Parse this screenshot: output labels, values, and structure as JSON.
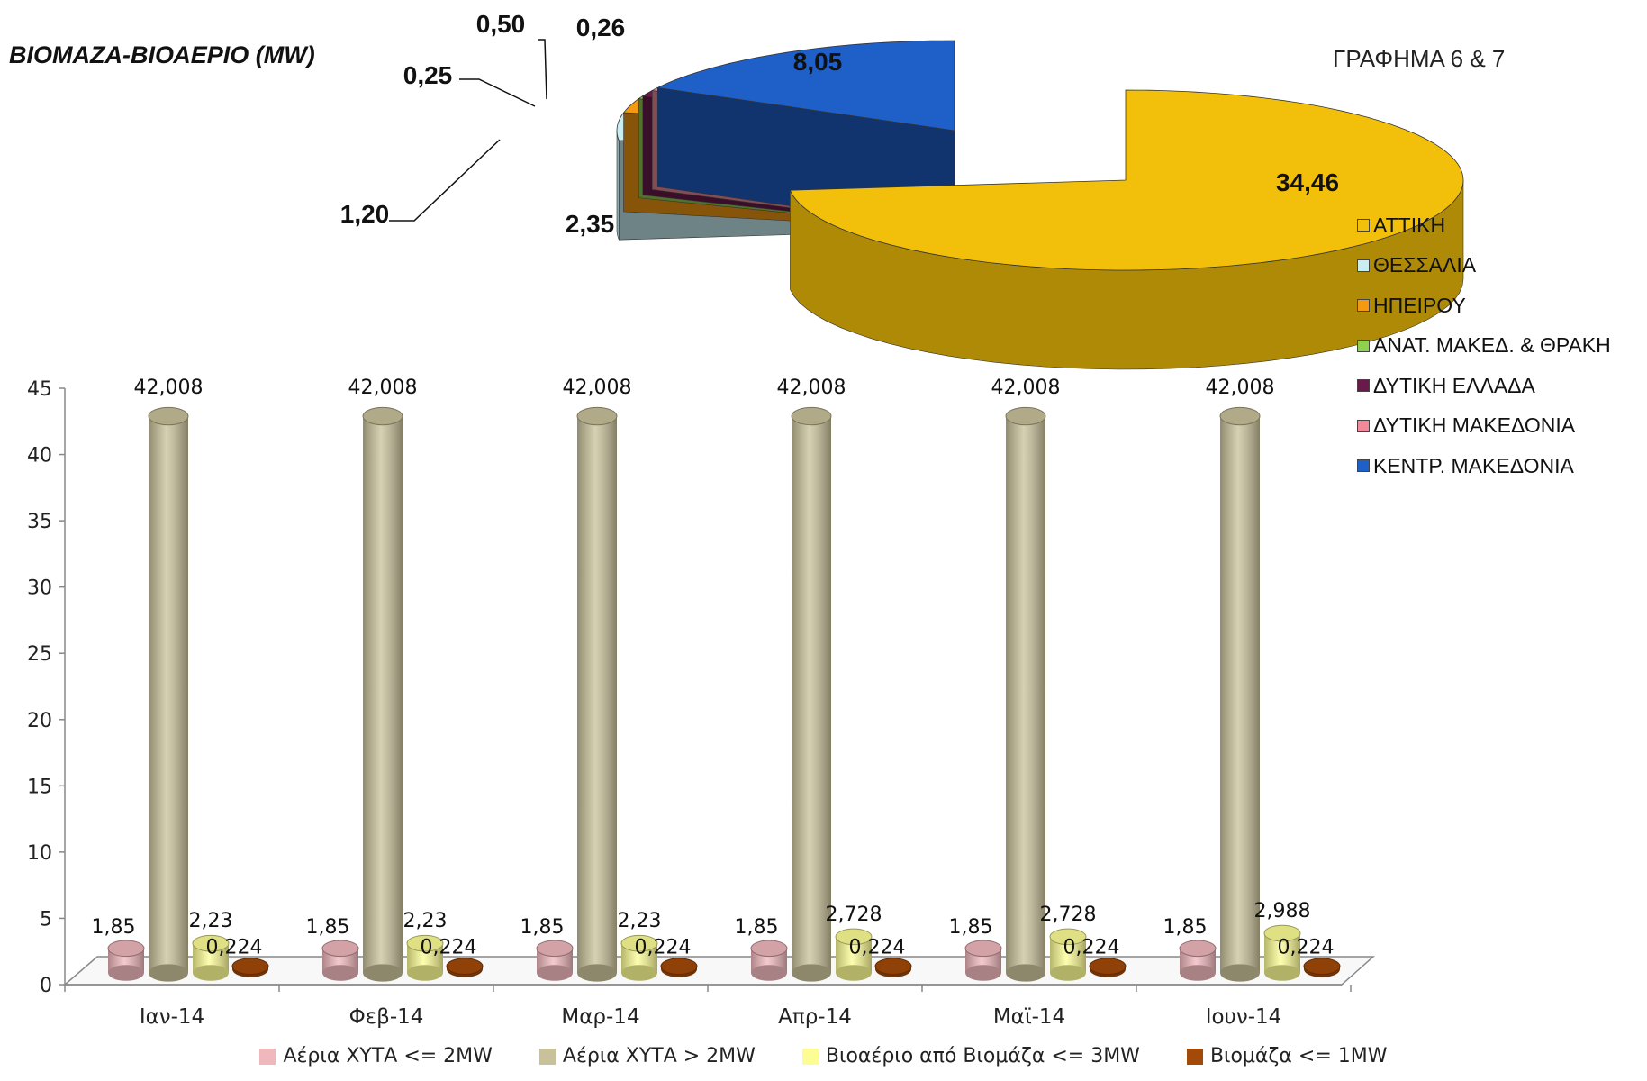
{
  "pie": {
    "title": "ΒΙΟΜΑΖΑ-ΒΙΟΑΕΡΙΟ (MW)",
    "caption": "ΓΡΑΦΗΜΑ 6 & 7"
  },
  "bar": {
    "legend": [
      {
        "name": "Αέρια ΧΥΤΑ <= 2MW",
        "color": "#f0b8bd"
      },
      {
        "name": "Αέρια ΧΥΤΑ > 2MW",
        "color": "#c9c19a"
      },
      {
        "name": "Βιοαέριο από Βιομάζα <= 3MW",
        "color": "#fdfd95"
      },
      {
        "name": "Βιομάζα <= 1MW",
        "color": "#a34a08"
      }
    ]
  },
  "chart_data": [
    {
      "type": "pie",
      "title": "ΒΙΟΜΑΖΑ-ΒΙΟΑΕΡΙΟ (MW)",
      "subtitle": "ΓΡΑΦΗΜΑ 6 & 7",
      "legend_position": "right",
      "slices": [
        {
          "name": "ΑΤΤΙΚΗ",
          "value": 34.46,
          "label": "34,46",
          "color": "#f2c00a"
        },
        {
          "name": "ΘΕΣΣΑΛΙΑ",
          "value": 2.35,
          "label": "2,35",
          "color": "#c8eef2"
        },
        {
          "name": "ΗΠΕΙΡΟΥ",
          "value": 1.2,
          "label": "1,20",
          "color": "#f39a12"
        },
        {
          "name": "ΑΝΑΤ. ΜΑΚΕΔ. & ΘΡΑΚΗ",
          "value": 0.25,
          "label": "0,25",
          "color": "#8fd14f"
        },
        {
          "name": "ΔΥΤΙΚΗ ΕΛΛΑΔΑ",
          "value": 0.5,
          "label": "0,50",
          "color": "#6a1a4a"
        },
        {
          "name": "ΔΥΤΙΚΗ ΜΑΚΕΔΟΝΙΑ",
          "value": 0.26,
          "label": "0,26",
          "color": "#f08a9a"
        },
        {
          "name": "ΚΕΝΤΡ. ΜΑΚΕΔΟΝΙΑ",
          "value": 8.05,
          "label": "8,05",
          "color": "#1f5fc8"
        }
      ]
    },
    {
      "type": "bar",
      "categories": [
        "Ιαν-14",
        "Φεβ-14",
        "Μαρ-14",
        "Απρ-14",
        "Μαϊ-14",
        "Ιουν-14"
      ],
      "ylim": [
        0,
        45
      ],
      "yticks": [
        "0",
        "5",
        "10",
        "15",
        "20",
        "25",
        "30",
        "35",
        "40",
        "45"
      ],
      "legend_position": "bottom",
      "series": [
        {
          "name": "Αέρια ΧΥΤΑ <= 2MW",
          "values": [
            1.85,
            1.85,
            1.85,
            1.85,
            1.85,
            1.85
          ],
          "labels": [
            "1,85",
            "1,85",
            "1,85",
            "1,85",
            "1,85",
            "1,85"
          ],
          "color": "#f0b8bd"
        },
        {
          "name": "Αέρια ΧΥΤΑ > 2MW",
          "values": [
            42.008,
            42.008,
            42.008,
            42.008,
            42.008,
            42.008
          ],
          "labels": [
            "42,008",
            "42,008",
            "42,008",
            "42,008",
            "42,008",
            "42,008"
          ],
          "color": "#c9c19a"
        },
        {
          "name": "Βιοαέριο από Βιομάζα <= 3MW",
          "values": [
            2.23,
            2.23,
            2.23,
            2.728,
            2.728,
            2.988
          ],
          "labels": [
            "2,23",
            "2,23",
            "2,23",
            "2,728",
            "2,728",
            "2,988"
          ],
          "color": "#fdfd95"
        },
        {
          "name": "Βιομάζα <= 1MW",
          "values": [
            0.224,
            0.224,
            0.224,
            0.224,
            0.224,
            0.224
          ],
          "labels": [
            "0,224",
            "0,224",
            "0,224",
            "0,224",
            "0,224",
            "0,224"
          ],
          "color": "#a34a08"
        }
      ]
    }
  ]
}
